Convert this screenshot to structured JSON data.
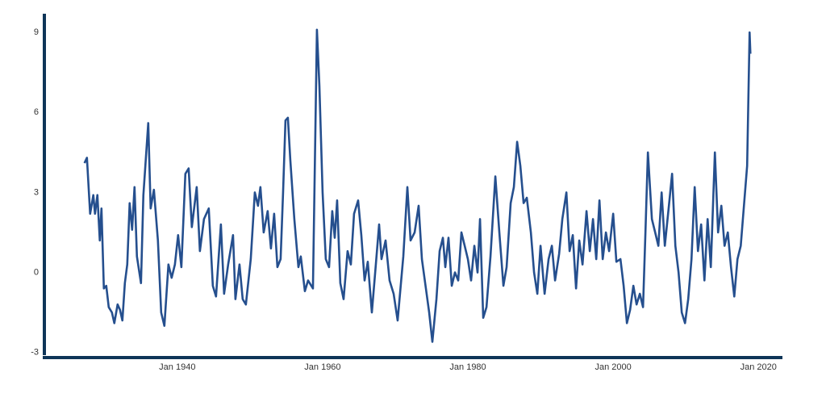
{
  "chart_data": {
    "type": "line",
    "x": [
      1927.22,
      1927.56,
      1928.0,
      1928.44,
      1928.67,
      1929.0,
      1929.33,
      1929.56,
      1929.89,
      1930.22,
      1930.56,
      1931.0,
      1931.33,
      1931.78,
      1932.11,
      1932.44,
      1932.78,
      1933.11,
      1933.44,
      1933.78,
      1934.11,
      1934.44,
      1935.0,
      1935.33,
      1936.0,
      1936.33,
      1936.78,
      1937.33,
      1937.78,
      1938.22,
      1938.78,
      1939.22,
      1939.67,
      1940.11,
      1940.56,
      1941.11,
      1941.56,
      1942.0,
      1942.67,
      1943.11,
      1943.67,
      1944.33,
      1944.89,
      1945.33,
      1946.0,
      1946.44,
      1947.0,
      1947.67,
      1948.0,
      1948.56,
      1949.0,
      1949.44,
      1950.11,
      1950.67,
      1951.11,
      1951.44,
      1951.89,
      1952.44,
      1952.89,
      1953.33,
      1953.78,
      1954.22,
      1954.56,
      1954.89,
      1955.22,
      1955.56,
      1956.11,
      1956.67,
      1957.0,
      1957.56,
      1958.0,
      1958.67,
      1959.22,
      1959.56,
      1960.0,
      1960.44,
      1960.89,
      1961.33,
      1961.67,
      1962.0,
      1962.44,
      1962.89,
      1963.44,
      1963.89,
      1964.33,
      1964.89,
      1965.33,
      1965.78,
      1966.22,
      1966.78,
      1967.33,
      1967.78,
      1968.11,
      1968.67,
      1969.22,
      1969.78,
      1970.33,
      1971.11,
      1971.67,
      1972.11,
      1972.67,
      1973.22,
      1973.67,
      1974.22,
      1974.67,
      1975.11,
      1975.67,
      1976.11,
      1976.56,
      1976.89,
      1977.33,
      1977.78,
      1978.22,
      1978.67,
      1979.11,
      1979.56,
      1980.0,
      1980.44,
      1980.89,
      1981.33,
      1981.67,
      1982.11,
      1982.56,
      1983.11,
      1983.78,
      1984.33,
      1984.89,
      1985.33,
      1985.89,
      1986.33,
      1986.78,
      1987.22,
      1987.67,
      1988.11,
      1988.67,
      1989.11,
      1989.56,
      1990.0,
      1990.56,
      1991.11,
      1991.56,
      1992.0,
      1992.56,
      1993.0,
      1993.56,
      1994.0,
      1994.44,
      1994.89,
      1995.33,
      1995.78,
      1996.33,
      1996.78,
      1997.22,
      1997.67,
      1998.11,
      1998.56,
      1999.0,
      1999.44,
      2000.0,
      2000.44,
      2001.0,
      2001.44,
      2001.89,
      2002.33,
      2002.78,
      2003.22,
      2003.67,
      2004.11,
      2004.44,
      2004.78,
      2005.33,
      2005.78,
      2006.22,
      2006.67,
      2007.11,
      2007.67,
      2008.11,
      2008.56,
      2009.0,
      2009.44,
      2009.89,
      2010.33,
      2010.78,
      2011.22,
      2011.67,
      2012.11,
      2012.56,
      2013.0,
      2013.44,
      2014.0,
      2014.44,
      2014.89,
      2015.33,
      2015.78,
      2016.22,
      2016.67,
      2017.11,
      2017.56,
      2018.0,
      2018.44,
      2018.78,
      2018.89
    ],
    "values": [
      4.1,
      4.3,
      2.2,
      2.9,
      2.2,
      2.9,
      1.2,
      2.4,
      -0.6,
      -0.5,
      -1.3,
      -1.5,
      -1.9,
      -1.2,
      -1.4,
      -1.8,
      -0.4,
      0.3,
      2.6,
      1.6,
      3.2,
      0.6,
      -0.4,
      2.9,
      5.6,
      2.4,
      3.1,
      1.2,
      -1.5,
      -2.0,
      0.3,
      -0.2,
      0.3,
      1.4,
      0.2,
      3.7,
      3.9,
      1.7,
      3.2,
      0.8,
      2.0,
      2.4,
      -0.5,
      -0.9,
      1.8,
      -0.8,
      0.3,
      1.4,
      -1.0,
      0.3,
      -1.0,
      -1.2,
      0.5,
      3.0,
      2.5,
      3.2,
      1.5,
      2.3,
      0.9,
      2.2,
      0.2,
      0.5,
      3.0,
      5.7,
      5.8,
      4.2,
      2.0,
      0.2,
      0.6,
      -0.7,
      -0.3,
      -0.6,
      9.1,
      7.0,
      3.0,
      0.5,
      0.2,
      2.3,
      1.3,
      2.7,
      -0.4,
      -1.0,
      0.8,
      0.3,
      2.2,
      2.7,
      1.4,
      -0.3,
      0.4,
      -1.5,
      0.3,
      1.8,
      0.5,
      1.2,
      -0.3,
      -0.8,
      -1.8,
      0.6,
      3.2,
      1.2,
      1.5,
      2.5,
      0.5,
      -0.6,
      -1.5,
      -2.6,
      -1.0,
      0.8,
      1.3,
      0.2,
      1.3,
      -0.5,
      0.0,
      -0.3,
      1.5,
      1.0,
      0.5,
      -0.3,
      1.0,
      0.0,
      2.0,
      -1.7,
      -1.3,
      0.6,
      3.6,
      1.5,
      -0.5,
      0.2,
      2.6,
      3.2,
      4.9,
      4.0,
      2.6,
      2.8,
      1.5,
      0.0,
      -0.8,
      1.0,
      -0.8,
      0.5,
      1.0,
      -0.3,
      0.7,
      2.0,
      3.0,
      0.8,
      1.4,
      -0.6,
      1.2,
      0.3,
      2.3,
      0.8,
      2.0,
      0.5,
      2.7,
      0.5,
      1.5,
      0.8,
      2.2,
      0.4,
      0.5,
      -0.5,
      -1.9,
      -1.4,
      -0.5,
      -1.2,
      -0.8,
      -1.3,
      1.5,
      4.5,
      2.0,
      1.5,
      1.0,
      3.0,
      1.0,
      2.5,
      3.7,
      1.0,
      0.0,
      -1.5,
      -1.9,
      -1.0,
      0.5,
      3.2,
      0.8,
      1.8,
      -0.3,
      2.0,
      0.2,
      4.5,
      1.5,
      2.5,
      1.0,
      1.5,
      0.2,
      -0.9,
      0.5,
      1.0,
      2.5,
      4.0,
      9.0,
      8.2
    ],
    "color": "#254f8e",
    "xlim": [
      1921.7,
      2023.3
    ],
    "xticks": [
      {
        "value": 1940,
        "label": "Jan 1940"
      },
      {
        "value": 1960,
        "label": "Jan 1960"
      },
      {
        "value": 1980,
        "label": "Jan 1980"
      },
      {
        "value": 2000,
        "label": "Jan 2000"
      },
      {
        "value": 2020,
        "label": "Jan 2020"
      }
    ],
    "ylim": [
      -3.1,
      9.7
    ],
    "yticks": [
      9,
      6,
      3,
      0,
      -3
    ],
    "grid": false
  }
}
